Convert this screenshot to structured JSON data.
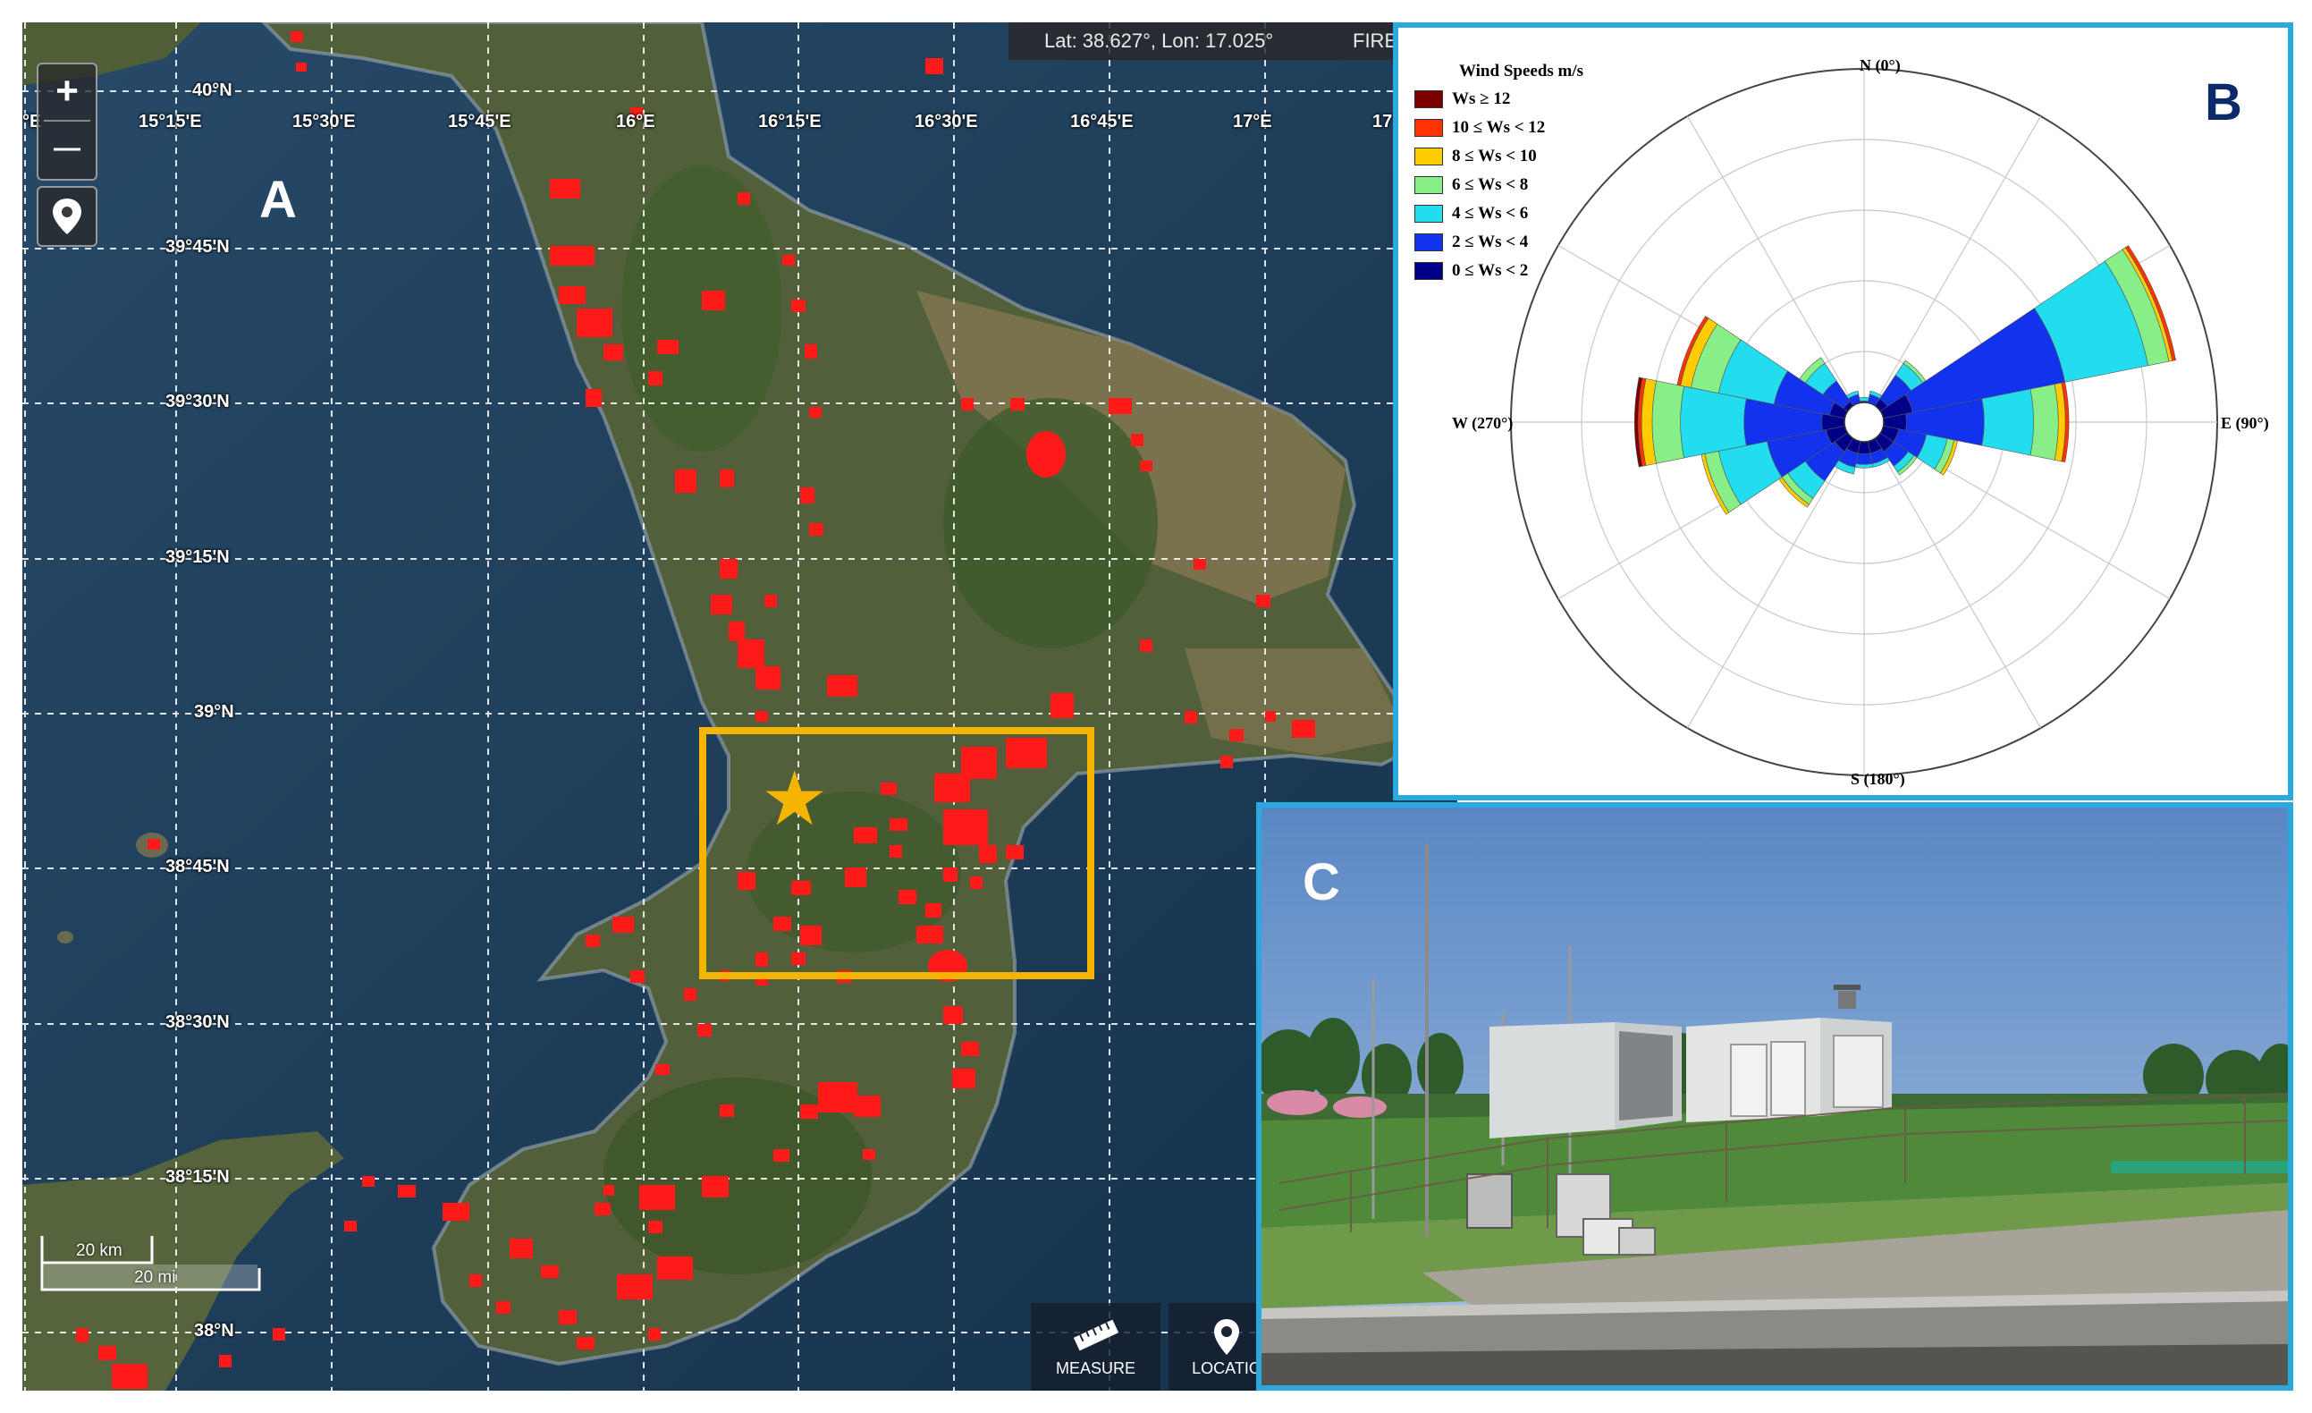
{
  "panels": {
    "a_label": "A",
    "b_label": "B",
    "c_label": "C"
  },
  "map": {
    "coord_readout": "Lat: 38.627°, Lon: 17.025°",
    "coord_readout_suffix": "FIRES",
    "zoom_in": "+",
    "zoom_out": "—",
    "lon_labels": [
      "°E",
      "15°15'E",
      "15°30'E",
      "15°45'E",
      "16°E",
      "16°15'E",
      "16°30'E",
      "16°45'E",
      "17°E",
      "17"
    ],
    "lat_labels": [
      "40°N",
      "39°45'N",
      "39°30'N",
      "39°15'N",
      "39°N",
      "38°45'N",
      "38°30'N",
      "38°15'N",
      "38°N"
    ],
    "scale_km": "20 km",
    "scale_mi": "20 mi",
    "tools": [
      {
        "label": "MEASURE",
        "icon": "ruler-icon"
      },
      {
        "label": "LOCATIO",
        "icon": "map-pin-icon"
      }
    ],
    "colors": {
      "fire": "#ff1a1a",
      "study_box": "#f5b400",
      "star": "#f5b400"
    }
  },
  "wind_rose": {
    "legend_title": "Wind Speeds m/s",
    "legend": [
      {
        "label": "Ws ≥ 12",
        "color": "#7a0000"
      },
      {
        "label": "10 ≤ Ws < 12",
        "color": "#ff3300"
      },
      {
        "label": "8 ≤ Ws < 10",
        "color": "#ffcc00"
      },
      {
        "label": "6 ≤ Ws < 8",
        "color": "#88ee88"
      },
      {
        "label": "4 ≤ Ws < 6",
        "color": "#22ddee"
      },
      {
        "label": "2 ≤ Ws < 4",
        "color": "#1133ee"
      },
      {
        "label": "0 ≤ Ws < 2",
        "color": "#000088"
      }
    ],
    "directions": {
      "n": "N (0°)",
      "e": "E (90°)",
      "s": "S (180°)",
      "w": "W (270°)"
    }
  },
  "chart_data": {
    "type": "wind-rose",
    "title": "",
    "legend_title": "Wind Speeds m/s",
    "speed_bins": [
      "0 ≤ Ws < 2",
      "2 ≤ Ws < 4",
      "4 ≤ Ws < 6",
      "6 ≤ Ws < 8",
      "8 ≤ Ws < 10",
      "10 ≤ Ws < 12",
      "Ws ≥ 12"
    ],
    "bin_colors": [
      "#000088",
      "#1133ee",
      "#22ddee",
      "#88ee88",
      "#ffcc00",
      "#ff3300",
      "#7a0000"
    ],
    "sectors_deg": [
      0,
      22.5,
      45,
      67.5,
      90,
      112.5,
      135,
      157.5,
      180,
      202.5,
      225,
      247.5,
      270,
      292.5,
      315,
      337.5
    ],
    "cumulative_radius_fraction": [
      [
        0.04,
        0.06,
        0.07,
        0.07,
        0.07,
        0.07,
        0.07
      ],
      [
        0.05,
        0.08,
        0.09,
        0.09,
        0.09,
        0.09,
        0.09
      ],
      [
        0.08,
        0.16,
        0.2,
        0.21,
        0.21,
        0.21,
        0.21
      ],
      [
        0.14,
        0.58,
        0.82,
        0.88,
        0.89,
        0.9,
        0.9
      ],
      [
        0.12,
        0.34,
        0.48,
        0.55,
        0.57,
        0.58,
        0.58
      ],
      [
        0.1,
        0.18,
        0.24,
        0.26,
        0.27,
        0.27,
        0.27
      ],
      [
        0.1,
        0.15,
        0.17,
        0.18,
        0.18,
        0.18,
        0.18
      ],
      [
        0.09,
        0.12,
        0.13,
        0.13,
        0.13,
        0.13,
        0.13
      ],
      [
        0.09,
        0.12,
        0.13,
        0.13,
        0.13,
        0.13,
        0.13
      ],
      [
        0.09,
        0.13,
        0.15,
        0.15,
        0.15,
        0.15,
        0.15
      ],
      [
        0.1,
        0.2,
        0.26,
        0.28,
        0.29,
        0.29,
        0.29
      ],
      [
        0.11,
        0.28,
        0.42,
        0.46,
        0.47,
        0.47,
        0.47
      ],
      [
        0.12,
        0.34,
        0.52,
        0.6,
        0.63,
        0.64,
        0.65
      ],
      [
        0.1,
        0.26,
        0.42,
        0.5,
        0.53,
        0.54,
        0.54
      ],
      [
        0.07,
        0.14,
        0.2,
        0.22,
        0.22,
        0.22,
        0.22
      ],
      [
        0.05,
        0.08,
        0.09,
        0.09,
        0.09,
        0.09,
        0.09
      ]
    ],
    "grid": true,
    "legend_position": "top-left"
  }
}
